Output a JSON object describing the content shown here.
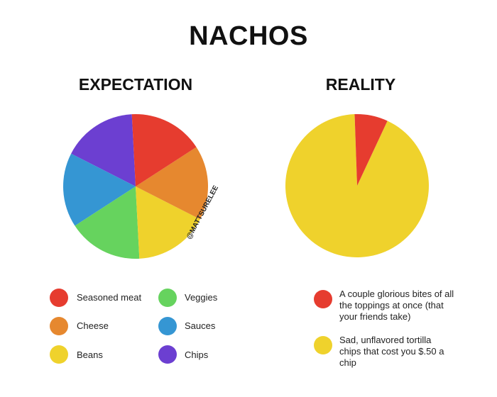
{
  "title": "NACHOS",
  "chart_data": [
    {
      "type": "pie",
      "title": "EXPECTATION",
      "watermark": "@MATTSURELEE",
      "slices": [
        {
          "label": "Seasoned meat",
          "value": 16.67,
          "color": "#e63c2f"
        },
        {
          "label": "Cheese",
          "value": 16.67,
          "color": "#e6882f"
        },
        {
          "label": "Beans",
          "value": 16.67,
          "color": "#efd22c"
        },
        {
          "label": "Veggies",
          "value": 16.67,
          "color": "#66d35e"
        },
        {
          "label": "Sauces",
          "value": 16.67,
          "color": "#3596d3"
        },
        {
          "label": "Chips",
          "value": 16.67,
          "color": "#6c3fd1"
        }
      ]
    },
    {
      "type": "pie",
      "title": "REALITY",
      "slices": [
        {
          "label": "A couple glorious bites of all the toppings at once (that your friends take)",
          "value": 7.5,
          "color": "#e63c2f"
        },
        {
          "label": "Sad, unflavored tortilla chips that cost you $.50 a chip",
          "value": 92.5,
          "color": "#efd22c"
        }
      ]
    }
  ]
}
